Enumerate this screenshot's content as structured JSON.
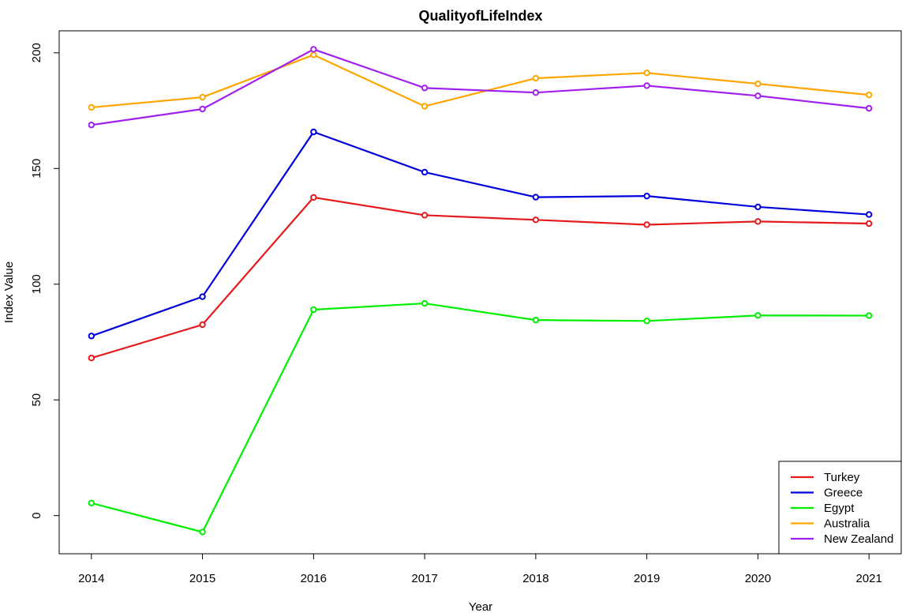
{
  "chart_data": {
    "type": "line",
    "title": "QualityofLifeIndex",
    "xlabel": "Year",
    "ylabel": "Index Value",
    "x": [
      2014,
      2015,
      2016,
      2017,
      2018,
      2019,
      2020,
      2021
    ],
    "xlim": [
      2013.71,
      2021.29
    ],
    "ylim": [
      -16.5,
      209.5
    ],
    "xticks": [
      2014,
      2015,
      2016,
      2017,
      2018,
      2019,
      2020,
      2021
    ],
    "yticks": [
      0,
      50,
      100,
      150,
      200
    ],
    "grid": false,
    "legend_position": "bottom-right",
    "markers": "open-circle",
    "series": [
      {
        "name": "Turkey",
        "color": "#e41a1c",
        "values": [
          68.1,
          82.5,
          137.5,
          129.8,
          127.8,
          125.7,
          127.1,
          126.2
        ]
      },
      {
        "name": "Greece",
        "color": "#0000dd",
        "values": [
          77.6,
          94.6,
          165.8,
          148.4,
          137.6,
          138.1,
          133.4,
          130.1
        ]
      },
      {
        "name": "Egypt",
        "color": "#00ee00",
        "values": [
          5.4,
          -7.1,
          89.0,
          91.7,
          84.5,
          84.1,
          86.5,
          86.4
        ]
      },
      {
        "name": "Australia",
        "color": "#ffa500",
        "values": [
          176.4,
          180.8,
          199.1,
          176.9,
          189.0,
          191.3,
          186.6,
          181.8
        ]
      },
      {
        "name": "New Zealand",
        "color": "#a020f0",
        "values": [
          168.8,
          175.7,
          201.5,
          184.8,
          182.8,
          185.8,
          181.4,
          176.0
        ]
      }
    ]
  }
}
